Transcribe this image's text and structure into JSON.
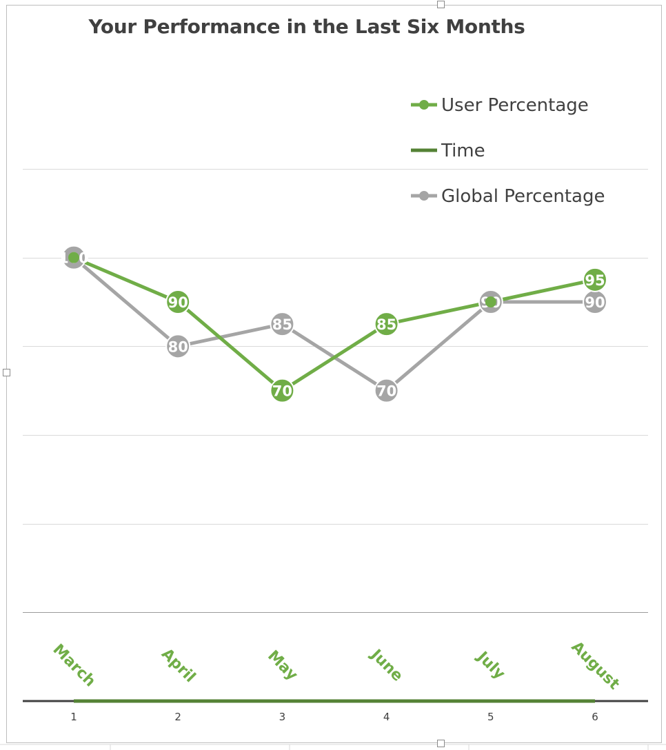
{
  "chart_data": {
    "type": "line",
    "title": "Your Performance in the Last Six Months",
    "x": [
      1,
      2,
      3,
      4,
      5,
      6
    ],
    "x_tick_labels": [
      "1",
      "2",
      "3",
      "4",
      "5",
      "6"
    ],
    "categories": [
      "March",
      "April",
      "May",
      "June",
      "July",
      "August"
    ],
    "ylim": [
      0,
      120
    ],
    "grid": true,
    "legend_position": "top-right",
    "series": [
      {
        "name": "User Percentage",
        "values": [
          100,
          90,
          70,
          85,
          90,
          95
        ],
        "color": "#70AD47",
        "markers": true,
        "data_labels": [
          "",
          "90",
          "70",
          "85",
          "",
          "95"
        ]
      },
      {
        "name": "Time",
        "values": [
          0,
          0,
          0,
          0,
          0,
          0
        ],
        "color": "#548235",
        "markers": false,
        "data_labels": [
          "",
          "",
          "",
          "",
          "",
          ""
        ]
      },
      {
        "name": "Global Percentage",
        "values": [
          100,
          80,
          85,
          70,
          90,
          90
        ],
        "color": "#A5A5A5",
        "markers": true,
        "data_labels": [
          "100",
          "80",
          "85",
          "70",
          "90",
          "90"
        ]
      }
    ],
    "category_label_color": "#70AD47"
  }
}
